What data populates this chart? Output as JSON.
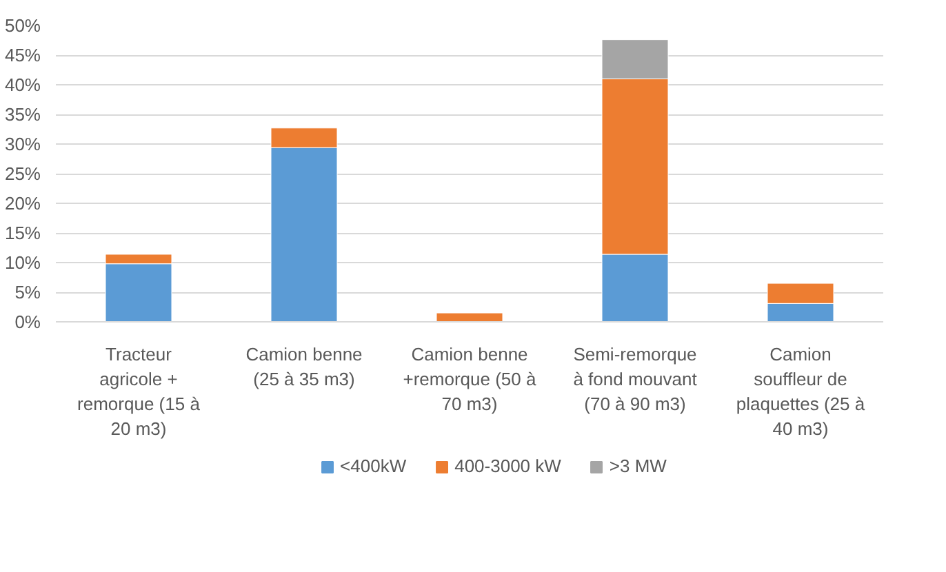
{
  "chart_data": {
    "type": "bar",
    "stacked": true,
    "categories": [
      "Tracteur\nagricole +\nremorque (15 à\n20 m3)",
      "Camion benne\n(25 à 35 m3)",
      "Camion benne\n+remorque (50 à\n70 m3)",
      "Semi-remorque\nà fond mouvant\n(70 à 90 m3)",
      "Camion\nsouffleur de\nplaquettes (25 à\n40 m3)"
    ],
    "series": [
      {
        "name": "<400kW",
        "color": "#5b9bd5",
        "values": [
          9.8,
          29.4,
          null,
          11.4,
          3.1
        ]
      },
      {
        "name": "400-3000 kW",
        "color": "#ed7d31",
        "values": [
          1.6,
          3.3,
          1.5,
          29.6,
          3.4
        ]
      },
      {
        "name": ">3 MW",
        "color": "#a5a5a5",
        "values": [
          null,
          null,
          null,
          6.6,
          null
        ]
      }
    ],
    "ylim": [
      0,
      50
    ],
    "yticks": [
      {
        "value": 0,
        "label": "0%"
      },
      {
        "value": 5,
        "label": "5%"
      },
      {
        "value": 10,
        "label": "10%"
      },
      {
        "value": 15,
        "label": "15%"
      },
      {
        "value": 20,
        "label": "20%"
      },
      {
        "value": 25,
        "label": "25%"
      },
      {
        "value": 30,
        "label": "30%"
      },
      {
        "value": 35,
        "label": "35%"
      },
      {
        "value": 40,
        "label": "40%"
      },
      {
        "value": 45,
        "label": "45%"
      },
      {
        "value": 50,
        "label": "50%"
      }
    ],
    "grid": "y",
    "legend": "bottom"
  }
}
